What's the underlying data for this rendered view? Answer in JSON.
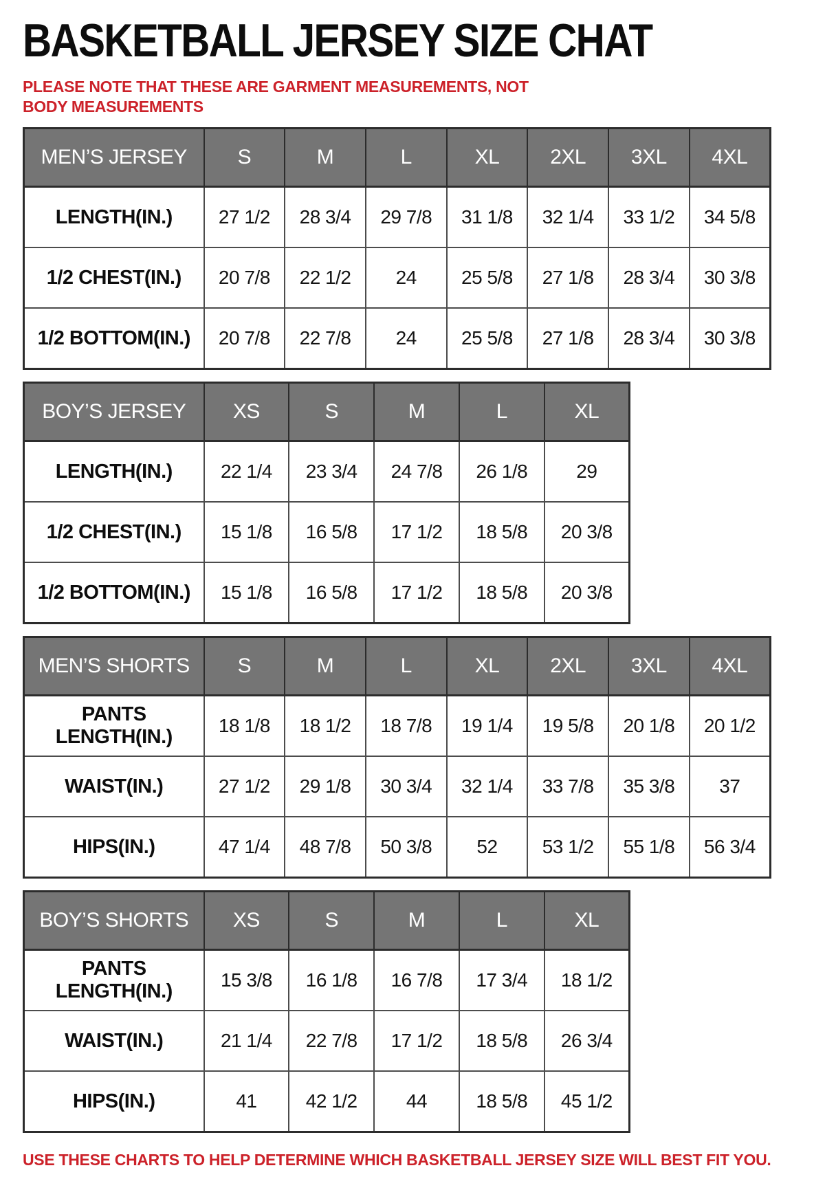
{
  "page": {
    "title": "BASKETBALL JERSEY SIZE CHAT",
    "note": "PLEASE NOTE THAT THESE ARE GARMENT MEASUREMENTS, NOT BODY MEASUREMENTS",
    "footer": "USE THESE CHARTS TO HELP DETERMINE WHICH BASKETBALL JERSEY SIZE WILL BEST FIT YOU.",
    "colors": {
      "header_bg": "#757575",
      "header_text": "#ffffff",
      "accent_red": "#cc2129",
      "border_dark": "#2c2c2c",
      "border_inner": "#4c4c4c"
    }
  },
  "tables": [
    {
      "id": "mens-jersey",
      "title": "MEN’S JERSEY",
      "sizes": [
        "S",
        "M",
        "L",
        "XL",
        "2XL",
        "3XL",
        "4XL"
      ],
      "rows": [
        {
          "label": "LENGTH(IN.)",
          "values": [
            "27 1/2",
            "28 3/4",
            "29 7/8",
            "31 1/8",
            "32 1/4",
            "33 1/2",
            "34 5/8"
          ]
        },
        {
          "label": "1/2 CHEST(IN.)",
          "values": [
            "20 7/8",
            "22 1/2",
            "24",
            "25 5/8",
            "27 1/8",
            "28 3/4",
            "30 3/8"
          ]
        },
        {
          "label": "1/2 BOTTOM(IN.)",
          "values": [
            "20 7/8",
            "22 7/8",
            "24",
            "25 5/8",
            "27 1/8",
            "28 3/4",
            "30 3/8"
          ]
        }
      ]
    },
    {
      "id": "boys-jersey",
      "title": "BOY’S JERSEY",
      "sizes": [
        "XS",
        "S",
        "M",
        "L",
        "XL"
      ],
      "rows": [
        {
          "label": "LENGTH(IN.)",
          "values": [
            "22 1/4",
            "23 3/4",
            "24 7/8",
            "26 1/8",
            "29"
          ]
        },
        {
          "label": "1/2 CHEST(IN.)",
          "values": [
            "15 1/8",
            "16 5/8",
            "17 1/2",
            "18 5/8",
            "20 3/8"
          ]
        },
        {
          "label": "1/2 BOTTOM(IN.)",
          "values": [
            "15 1/8",
            "16 5/8",
            "17 1/2",
            "18 5/8",
            "20 3/8"
          ]
        }
      ]
    },
    {
      "id": "mens-shorts",
      "title": "MEN’S SHORTS",
      "sizes": [
        "S",
        "M",
        "L",
        "XL",
        "2XL",
        "3XL",
        "4XL"
      ],
      "rows": [
        {
          "label": "PANTS LENGTH(IN.)",
          "values": [
            "18 1/8",
            "18 1/2",
            "18 7/8",
            "19 1/4",
            "19 5/8",
            "20 1/8",
            "20 1/2"
          ]
        },
        {
          "label": "WAIST(IN.)",
          "values": [
            "27 1/2",
            "29 1/8",
            "30 3/4",
            "32 1/4",
            "33 7/8",
            "35 3/8",
            "37"
          ]
        },
        {
          "label": "HIPS(IN.)",
          "values": [
            "47 1/4",
            "48 7/8",
            "50 3/8",
            "52",
            "53 1/2",
            "55 1/8",
            "56 3/4"
          ]
        }
      ]
    },
    {
      "id": "boys-shorts",
      "title": "BOY’S SHORTS",
      "sizes": [
        "XS",
        "S",
        "M",
        "L",
        "XL"
      ],
      "rows": [
        {
          "label": "PANTS LENGTH(IN.)",
          "values": [
            "15 3/8",
            "16 1/8",
            "16 7/8",
            "17 3/4",
            "18 1/2"
          ]
        },
        {
          "label": "WAIST(IN.)",
          "values": [
            "21 1/4",
            "22 7/8",
            "17 1/2",
            "18 5/8",
            "26 3/4"
          ]
        },
        {
          "label": "HIPS(IN.)",
          "values": [
            "41",
            "42 1/2",
            "44",
            "18 5/8",
            "45 1/2"
          ]
        }
      ]
    }
  ]
}
